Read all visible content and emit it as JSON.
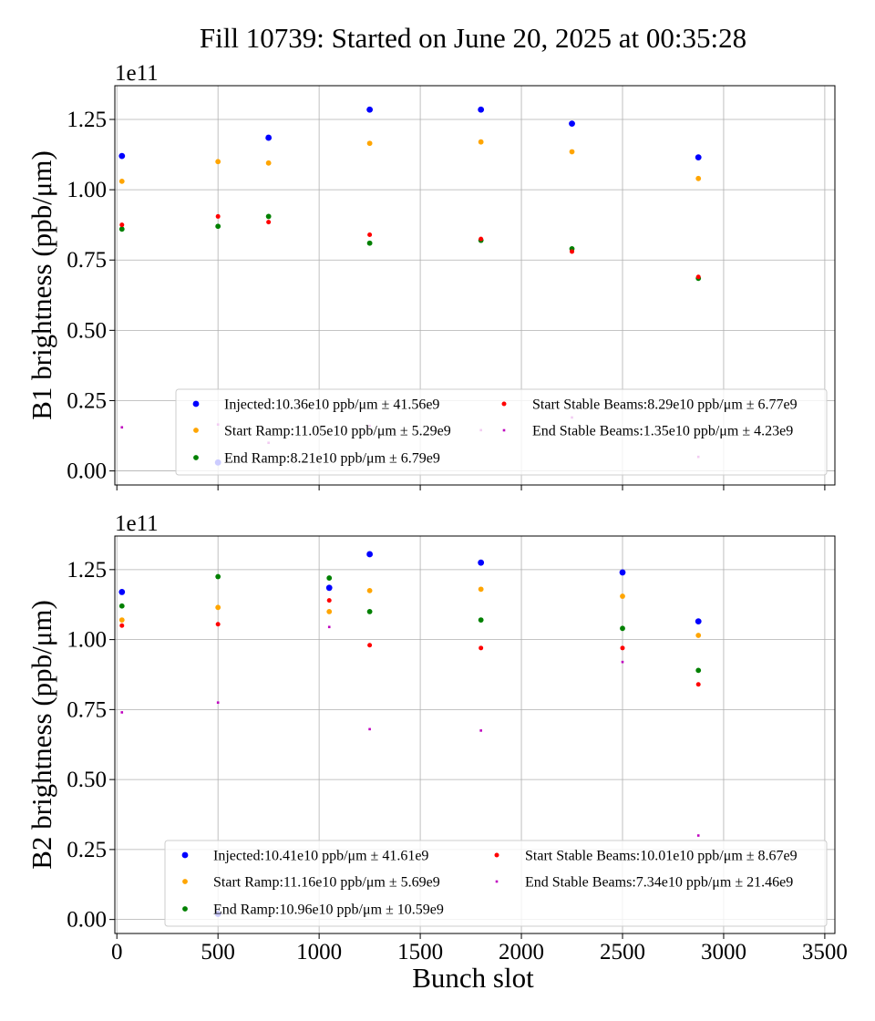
{
  "chart_data": [
    {
      "type": "scatter",
      "title": "Fill 10739: Started on June 20, 2025 at 00:35:28",
      "xlabel": "",
      "ylabel": "B1 brightness (ppb/μm)",
      "y_offset_label": "1e11",
      "xlim": [
        -10,
        3550
      ],
      "ylim": [
        -0.05,
        1.37
      ],
      "xticks": [
        0,
        500,
        1000,
        1500,
        2000,
        2500,
        3000,
        3500
      ],
      "yticks": [
        0.0,
        0.25,
        0.5,
        0.75,
        1.0,
        1.25
      ],
      "ytick_labels": [
        "0.00",
        "0.25",
        "0.50",
        "0.75",
        "1.00",
        "1.25"
      ],
      "xtick_labels_visible": false,
      "grid": true,
      "legend_position": "lower-right",
      "series": [
        {
          "name": "Injected",
          "legend": "Injected:10.36e10 ppb/μm ± 41.56e9",
          "color": "#0000ff",
          "marker": "dot-large",
          "x": [
            25,
            500,
            750,
            1250,
            1800,
            2250,
            2875
          ],
          "y": [
            1.12,
            0.03,
            1.185,
            1.285,
            1.285,
            1.235,
            1.115
          ]
        },
        {
          "name": "Start Ramp",
          "legend": "Start Ramp:11.05e10 ppb/μm ± 5.29e9",
          "color": "#ffa500",
          "marker": "dot",
          "x": [
            25,
            500,
            750,
            1250,
            1800,
            2250,
            2875
          ],
          "y": [
            1.03,
            1.1,
            1.095,
            1.165,
            1.17,
            1.135,
            1.04
          ]
        },
        {
          "name": "End Ramp",
          "legend": "End Ramp:8.21e10 ppb/μm ± 6.79e9",
          "color": "#008000",
          "marker": "dot",
          "x": [
            25,
            500,
            750,
            1250,
            1800,
            2250,
            2875
          ],
          "y": [
            0.86,
            0.87,
            0.905,
            0.81,
            0.82,
            0.79,
            0.685
          ]
        },
        {
          "name": "Start Stable Beams",
          "legend": "Start Stable Beams:8.29e10 ppb/μm ± 6.77e9",
          "color": "#ff0000",
          "marker": "dot-small",
          "x": [
            25,
            500,
            750,
            1250,
            1800,
            2250,
            2875
          ],
          "y": [
            0.875,
            0.905,
            0.885,
            0.84,
            0.825,
            0.78,
            0.69
          ]
        },
        {
          "name": "End Stable Beams",
          "legend": "End Stable Beams:1.35e10 ppb/μm ± 4.23e9",
          "color": "#bf00bf",
          "marker": "square-tiny",
          "x": [
            25,
            500,
            750,
            1250,
            1800,
            2250,
            2875
          ],
          "y": [
            0.155,
            0.165,
            0.1,
            0.16,
            0.145,
            0.19,
            0.05
          ]
        }
      ]
    },
    {
      "type": "scatter",
      "title": "",
      "xlabel": "Bunch slot",
      "ylabel": "B2 brightness (ppb/μm)",
      "y_offset_label": "1e11",
      "xlim": [
        -10,
        3550
      ],
      "ylim": [
        -0.05,
        1.37
      ],
      "xticks": [
        0,
        500,
        1000,
        1500,
        2000,
        2500,
        3000,
        3500
      ],
      "xtick_labels": [
        "0",
        "500",
        "1000",
        "1500",
        "2000",
        "2500",
        "3000",
        "3500"
      ],
      "yticks": [
        0.0,
        0.25,
        0.5,
        0.75,
        1.0,
        1.25
      ],
      "ytick_labels": [
        "0.00",
        "0.25",
        "0.50",
        "0.75",
        "1.00",
        "1.25"
      ],
      "xtick_labels_visible": true,
      "grid": true,
      "legend_position": "lower-right",
      "series": [
        {
          "name": "Injected",
          "legend": "Injected:10.41e10 ppb/μm ± 41.61e9",
          "color": "#0000ff",
          "marker": "dot-large",
          "x": [
            25,
            500,
            1050,
            1250,
            1800,
            2500,
            2875
          ],
          "y": [
            1.17,
            0.02,
            1.185,
            1.305,
            1.275,
            1.24,
            1.065
          ]
        },
        {
          "name": "Start Ramp",
          "legend": "Start Ramp:11.16e10 ppb/μm ± 5.69e9",
          "color": "#ffa500",
          "marker": "dot",
          "x": [
            25,
            500,
            1050,
            1250,
            1800,
            2500,
            2875
          ],
          "y": [
            1.07,
            1.115,
            1.1,
            1.175,
            1.18,
            1.155,
            1.015
          ]
        },
        {
          "name": "End Ramp",
          "legend": "End Ramp:10.96e10 ppb/μm ± 10.59e9",
          "color": "#008000",
          "marker": "dot",
          "x": [
            25,
            500,
            1050,
            1250,
            1800,
            2500,
            2875
          ],
          "y": [
            1.12,
            1.225,
            1.22,
            1.1,
            1.07,
            1.04,
            0.89
          ]
        },
        {
          "name": "Start Stable Beams",
          "legend": "Start Stable Beams:10.01e10 ppb/μm ± 8.67e9",
          "color": "#ff0000",
          "marker": "dot-small",
          "x": [
            25,
            500,
            1050,
            1250,
            1800,
            2500,
            2875
          ],
          "y": [
            1.05,
            1.055,
            1.14,
            0.98,
            0.97,
            0.97,
            0.84
          ]
        },
        {
          "name": "End Stable Beams",
          "legend": "End Stable Beams:7.34e10 ppb/μm ± 21.46e9",
          "color": "#bf00bf",
          "marker": "square-tiny",
          "x": [
            25,
            500,
            1050,
            1250,
            1800,
            2500,
            2875
          ],
          "y": [
            0.74,
            0.775,
            1.045,
            0.68,
            0.675,
            0.92,
            0.3
          ]
        }
      ]
    }
  ]
}
